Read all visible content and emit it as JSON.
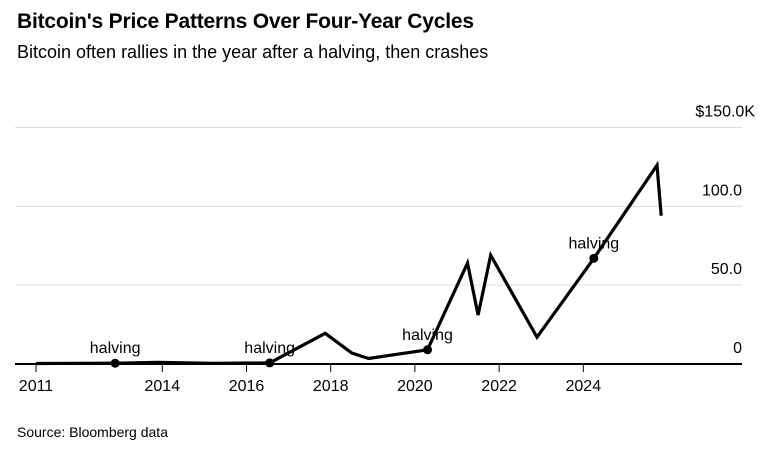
{
  "header": {
    "title": "Bitcoin's Price Patterns Over Four-Year Cycles",
    "subtitle": "Bitcoin often rallies in the year after a halving, then crashes"
  },
  "footer": {
    "source": "Source: Bloomberg data"
  },
  "chart_data": {
    "type": "line",
    "title": "Bitcoin's Price Patterns Over Four-Year Cycles",
    "subtitle": "Bitcoin often rallies in the year after a halving, then crashes",
    "source": "Source: Bloomberg data",
    "x_unit": "year",
    "y_unit": "USD thousands",
    "xlim": [
      2010.5,
      2027.7
    ],
    "ylim": [
      0,
      150
    ],
    "grid": "horizontal",
    "legend": "none",
    "colors": {
      "line": "#000000",
      "grid": "#dcdcdc",
      "axis": "#000000",
      "text": "#000000",
      "background": "#ffffff"
    },
    "yticks": [
      {
        "value": 150,
        "label": "$150.0K"
      },
      {
        "value": 100,
        "label": "100.0"
      },
      {
        "value": 50,
        "label": "50.0"
      },
      {
        "value": 0,
        "label": "0"
      }
    ],
    "xticks": [
      {
        "value": 2011,
        "label": "2011"
      },
      {
        "value": 2014,
        "label": "2014"
      },
      {
        "value": 2016,
        "label": "2016"
      },
      {
        "value": 2018,
        "label": "2018"
      },
      {
        "value": 2020,
        "label": "2020"
      },
      {
        "value": 2022,
        "label": "2022"
      },
      {
        "value": 2024,
        "label": "2024"
      }
    ],
    "series": [
      {
        "name": "Bitcoin price",
        "points": [
          [
            2011.0,
            0.3
          ],
          [
            2012.88,
            0.5
          ],
          [
            2013.9,
            1.1
          ],
          [
            2015.2,
            0.4
          ],
          [
            2016.55,
            0.7
          ],
          [
            2017.87,
            19.5
          ],
          [
            2018.5,
            7
          ],
          [
            2018.9,
            3.5
          ],
          [
            2020.3,
            9
          ],
          [
            2021.25,
            64
          ],
          [
            2021.5,
            31
          ],
          [
            2021.8,
            69
          ],
          [
            2022.9,
            17
          ],
          [
            2024.25,
            67
          ],
          [
            2025.75,
            126
          ],
          [
            2025.85,
            94
          ]
        ]
      }
    ],
    "annotations": [
      {
        "label": "halving",
        "year": 2012.88,
        "value": 0.5
      },
      {
        "label": "halving",
        "year": 2016.55,
        "value": 0.7
      },
      {
        "label": "halving",
        "year": 2020.3,
        "value": 9
      },
      {
        "label": "halving",
        "year": 2024.25,
        "value": 67
      }
    ]
  }
}
